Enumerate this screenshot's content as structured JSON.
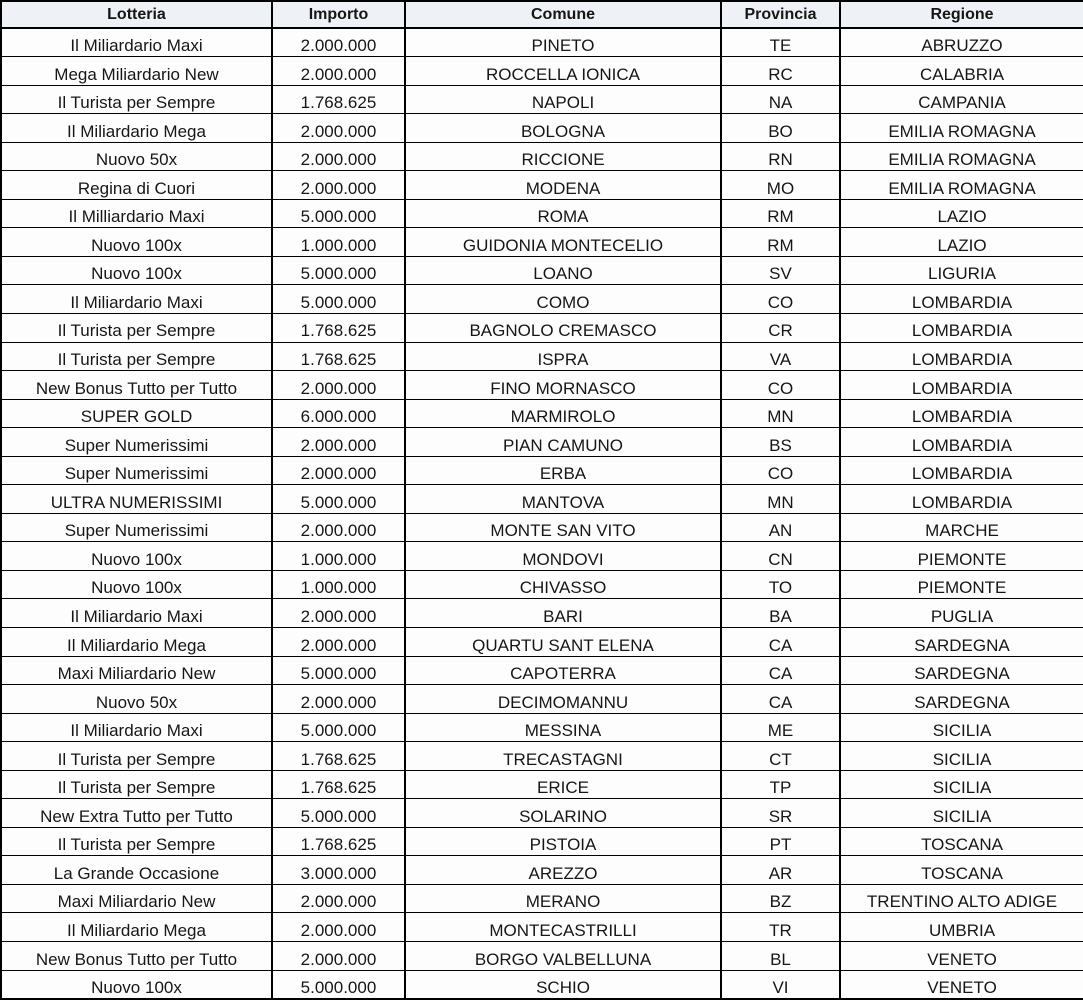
{
  "colors": {
    "header_background": "#eef1f6",
    "cell_background": "#fdfdfe",
    "border": "#000000",
    "text": "#161616"
  },
  "table": {
    "columns": [
      {
        "key": "lotteria",
        "label": "Lotteria"
      },
      {
        "key": "importo",
        "label": "Importo"
      },
      {
        "key": "comune",
        "label": "Comune"
      },
      {
        "key": "provincia",
        "label": "Provincia"
      },
      {
        "key": "regione",
        "label": "Regione"
      }
    ],
    "rows": [
      [
        "Il Miliardario Maxi",
        "2.000.000",
        "PINETO",
        "TE",
        "ABRUZZO"
      ],
      [
        "Mega Miliardario New",
        "2.000.000",
        "ROCCELLA IONICA",
        "RC",
        "CALABRIA"
      ],
      [
        "Il Turista per Sempre",
        "1.768.625",
        "NAPOLI",
        "NA",
        "CAMPANIA"
      ],
      [
        "Il Miliardario Mega",
        "2.000.000",
        "BOLOGNA",
        "BO",
        "EMILIA ROMAGNA"
      ],
      [
        "Nuovo 50x",
        "2.000.000",
        "RICCIONE",
        "RN",
        "EMILIA ROMAGNA"
      ],
      [
        "Regina di Cuori",
        "2.000.000",
        "MODENA",
        "MO",
        "EMILIA ROMAGNA"
      ],
      [
        "Il Milliardario Maxi",
        "5.000.000",
        "ROMA",
        "RM",
        "LAZIO"
      ],
      [
        "Nuovo 100x",
        "1.000.000",
        "GUIDONIA MONTECELIO",
        "RM",
        "LAZIO"
      ],
      [
        "Nuovo 100x",
        "5.000.000",
        "LOANO",
        "SV",
        "LIGURIA"
      ],
      [
        "Il Miliardario Maxi",
        "5.000.000",
        "COMO",
        "CO",
        "LOMBARDIA"
      ],
      [
        "Il Turista per Sempre",
        "1.768.625",
        "BAGNOLO CREMASCO",
        "CR",
        "LOMBARDIA"
      ],
      [
        "Il Turista per Sempre",
        "1.768.625",
        "ISPRA",
        "VA",
        "LOMBARDIA"
      ],
      [
        "New Bonus Tutto per Tutto",
        "2.000.000",
        "FINO MORNASCO",
        "CO",
        "LOMBARDIA"
      ],
      [
        "SUPER GOLD",
        "6.000.000",
        "MARMIROLO",
        "MN",
        "LOMBARDIA"
      ],
      [
        "Super Numerissimi",
        "2.000.000",
        "PIAN CAMUNO",
        "BS",
        "LOMBARDIA"
      ],
      [
        "Super Numerissimi",
        "2.000.000",
        "ERBA",
        "CO",
        "LOMBARDIA"
      ],
      [
        "ULTRA NUMERISSIMI",
        "5.000.000",
        "MANTOVA",
        "MN",
        "LOMBARDIA"
      ],
      [
        "Super Numerissimi",
        "2.000.000",
        "MONTE SAN VITO",
        "AN",
        "MARCHE"
      ],
      [
        "Nuovo 100x",
        "1.000.000",
        "MONDOVI",
        "CN",
        "PIEMONTE"
      ],
      [
        "Nuovo 100x",
        "1.000.000",
        "CHIVASSO",
        "TO",
        "PIEMONTE"
      ],
      [
        "Il Miliardario Maxi",
        "2.000.000",
        "BARI",
        "BA",
        "PUGLIA"
      ],
      [
        "Il Miliardario Mega",
        "2.000.000",
        "QUARTU SANT ELENA",
        "CA",
        "SARDEGNA"
      ],
      [
        "Maxi Miliardario New",
        "5.000.000",
        "CAPOTERRA",
        "CA",
        "SARDEGNA"
      ],
      [
        "Nuovo 50x",
        "2.000.000",
        "DECIMOMANNU",
        "CA",
        "SARDEGNA"
      ],
      [
        "Il Miliardario Maxi",
        "5.000.000",
        "MESSINA",
        "ME",
        "SICILIA"
      ],
      [
        "Il Turista per Sempre",
        "1.768.625",
        "TRECASTAGNI",
        "CT",
        "SICILIA"
      ],
      [
        "Il Turista per Sempre",
        "1.768.625",
        "ERICE",
        "TP",
        "SICILIA"
      ],
      [
        "New Extra Tutto per Tutto",
        "5.000.000",
        "SOLARINO",
        "SR",
        "SICILIA"
      ],
      [
        "Il Turista per Sempre",
        "1.768.625",
        "PISTOIA",
        "PT",
        "TOSCANA"
      ],
      [
        "La Grande Occasione",
        "3.000.000",
        "AREZZO",
        "AR",
        "TOSCANA"
      ],
      [
        "Maxi Miliardario New",
        "2.000.000",
        "MERANO",
        "BZ",
        "TRENTINO ALTO ADIGE"
      ],
      [
        "Il Miliardario Mega",
        "2.000.000",
        "MONTECASTRILLI",
        "TR",
        "UMBRIA"
      ],
      [
        "New Bonus Tutto per Tutto",
        "2.000.000",
        "BORGO VALBELLUNA",
        "BL",
        "VENETO"
      ],
      [
        "Nuovo 100x",
        "5.000.000",
        "SCHIO",
        "VI",
        "VENETO"
      ]
    ]
  }
}
